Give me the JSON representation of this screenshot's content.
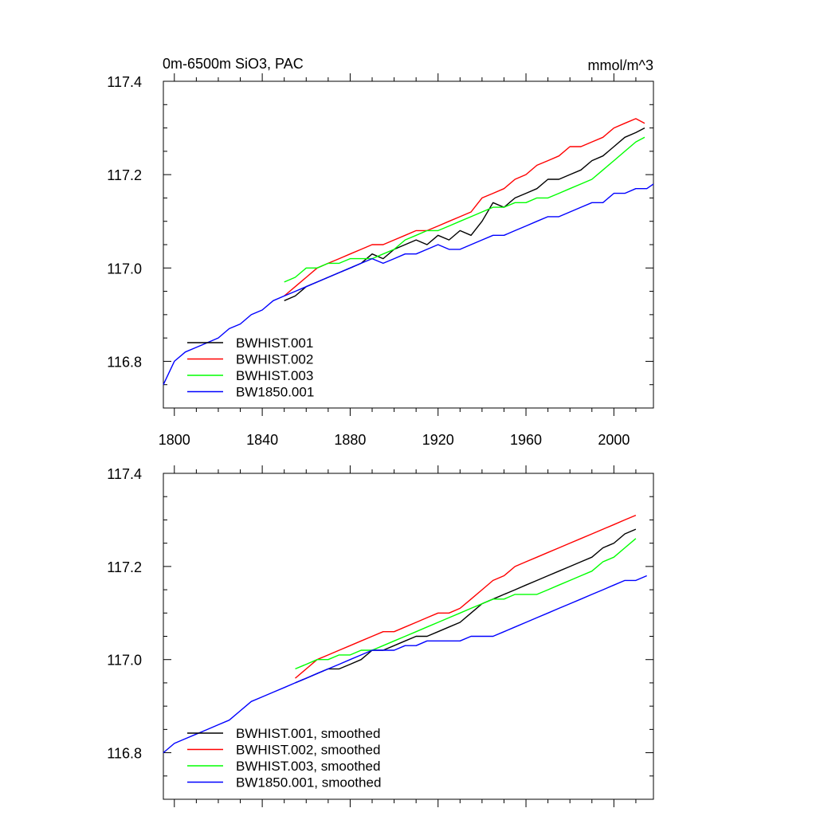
{
  "title_left": "0m-6500m SiO3, PAC",
  "title_right": "mmol/m^3",
  "chart_data": [
    {
      "type": "line",
      "xlim": [
        1795,
        2018
      ],
      "ylim": [
        116.7,
        117.4
      ],
      "x_major_ticks": [
        1800,
        1840,
        1880,
        1920,
        1960,
        2000
      ],
      "y_major_ticks": [
        116.8,
        117.0,
        117.2,
        117.4
      ],
      "x_tick_labels": [
        "1800",
        "1840",
        "1880",
        "1920",
        "1960",
        "2000"
      ],
      "y_tick_labels": [
        "116.8",
        "117.0",
        "117.2",
        "117.4"
      ],
      "legend_position": "bottom-left",
      "grid": false,
      "series": [
        {
          "name": "BWHIST.001",
          "color": "#000000",
          "x": [
            1850,
            1855,
            1860,
            1865,
            1870,
            1875,
            1880,
            1885,
            1890,
            1895,
            1900,
            1905,
            1910,
            1915,
            1920,
            1925,
            1930,
            1935,
            1940,
            1945,
            1950,
            1955,
            1960,
            1965,
            1970,
            1975,
            1980,
            1985,
            1990,
            1995,
            2000,
            2005,
            2010,
            2014
          ],
          "y": [
            116.93,
            116.94,
            116.96,
            116.97,
            116.98,
            116.99,
            117.0,
            117.01,
            117.03,
            117.02,
            117.04,
            117.05,
            117.06,
            117.05,
            117.07,
            117.06,
            117.08,
            117.07,
            117.1,
            117.14,
            117.13,
            117.15,
            117.16,
            117.17,
            117.19,
            117.19,
            117.2,
            117.21,
            117.23,
            117.24,
            117.26,
            117.28,
            117.29,
            117.3
          ]
        },
        {
          "name": "BWHIST.002",
          "color": "#ff0000",
          "x": [
            1850,
            1855,
            1860,
            1865,
            1870,
            1875,
            1880,
            1885,
            1890,
            1895,
            1900,
            1905,
            1910,
            1915,
            1920,
            1925,
            1930,
            1935,
            1940,
            1945,
            1950,
            1955,
            1960,
            1965,
            1970,
            1975,
            1980,
            1985,
            1990,
            1995,
            2000,
            2005,
            2010,
            2014
          ],
          "y": [
            116.94,
            116.96,
            116.98,
            117.0,
            117.01,
            117.02,
            117.03,
            117.04,
            117.05,
            117.05,
            117.06,
            117.07,
            117.08,
            117.08,
            117.09,
            117.1,
            117.11,
            117.12,
            117.15,
            117.16,
            117.17,
            117.19,
            117.2,
            117.22,
            117.23,
            117.24,
            117.26,
            117.26,
            117.27,
            117.28,
            117.3,
            117.31,
            117.32,
            117.31
          ]
        },
        {
          "name": "BWHIST.003",
          "color": "#00ff00",
          "x": [
            1850,
            1855,
            1860,
            1865,
            1870,
            1875,
            1880,
            1885,
            1890,
            1895,
            1900,
            1905,
            1910,
            1915,
            1920,
            1925,
            1930,
            1935,
            1940,
            1945,
            1950,
            1955,
            1960,
            1965,
            1970,
            1975,
            1980,
            1985,
            1990,
            1995,
            2000,
            2005,
            2010,
            2014
          ],
          "y": [
            116.97,
            116.98,
            117.0,
            117.0,
            117.01,
            117.01,
            117.02,
            117.02,
            117.02,
            117.03,
            117.04,
            117.06,
            117.07,
            117.08,
            117.08,
            117.09,
            117.1,
            117.11,
            117.12,
            117.13,
            117.13,
            117.14,
            117.14,
            117.15,
            117.15,
            117.16,
            117.17,
            117.18,
            117.19,
            117.21,
            117.23,
            117.25,
            117.27,
            117.28
          ]
        },
        {
          "name": "BW1850.001",
          "color": "#0000ff",
          "x": [
            1795,
            1800,
            1805,
            1810,
            1815,
            1820,
            1825,
            1830,
            1835,
            1840,
            1845,
            1850,
            1855,
            1860,
            1865,
            1870,
            1875,
            1880,
            1885,
            1890,
            1895,
            1900,
            1905,
            1910,
            1915,
            1920,
            1925,
            1930,
            1935,
            1940,
            1945,
            1950,
            1955,
            1960,
            1965,
            1970,
            1975,
            1980,
            1985,
            1990,
            1995,
            2000,
            2005,
            2010,
            2015,
            2018
          ],
          "y": [
            116.75,
            116.8,
            116.82,
            116.83,
            116.84,
            116.85,
            116.87,
            116.88,
            116.9,
            116.91,
            116.93,
            116.94,
            116.95,
            116.96,
            116.97,
            116.98,
            116.99,
            117.0,
            117.01,
            117.02,
            117.01,
            117.02,
            117.03,
            117.03,
            117.04,
            117.05,
            117.04,
            117.04,
            117.05,
            117.06,
            117.07,
            117.07,
            117.08,
            117.09,
            117.1,
            117.11,
            117.11,
            117.12,
            117.13,
            117.14,
            117.14,
            117.16,
            117.16,
            117.17,
            117.17,
            117.18
          ]
        }
      ]
    },
    {
      "type": "line",
      "xlim": [
        1795,
        2018
      ],
      "ylim": [
        116.7,
        117.4
      ],
      "y_major_ticks": [
        116.8,
        117.0,
        117.2,
        117.4
      ],
      "y_tick_labels": [
        "116.8",
        "117.0",
        "117.2",
        "117.4"
      ],
      "x_major_ticks": [
        1800,
        1840,
        1880,
        1920,
        1960,
        2000
      ],
      "legend_position": "bottom-left",
      "grid": false,
      "series": [
        {
          "name": "BWHIST.001, smoothed",
          "color": "#000000",
          "x": [
            1855,
            1860,
            1865,
            1870,
            1875,
            1880,
            1885,
            1890,
            1895,
            1900,
            1905,
            1910,
            1915,
            1920,
            1925,
            1930,
            1935,
            1940,
            1945,
            1950,
            1955,
            1960,
            1965,
            1970,
            1975,
            1980,
            1985,
            1990,
            1995,
            2000,
            2005,
            2010
          ],
          "y": [
            116.95,
            116.96,
            116.97,
            116.98,
            116.98,
            116.99,
            117.0,
            117.02,
            117.02,
            117.03,
            117.04,
            117.05,
            117.05,
            117.06,
            117.07,
            117.08,
            117.1,
            117.12,
            117.13,
            117.14,
            117.15,
            117.16,
            117.17,
            117.18,
            117.19,
            117.2,
            117.21,
            117.22,
            117.24,
            117.25,
            117.27,
            117.28
          ]
        },
        {
          "name": "BWHIST.002, smoothed",
          "color": "#ff0000",
          "x": [
            1855,
            1860,
            1865,
            1870,
            1875,
            1880,
            1885,
            1890,
            1895,
            1900,
            1905,
            1910,
            1915,
            1920,
            1925,
            1930,
            1935,
            1940,
            1945,
            1950,
            1955,
            1960,
            1965,
            1970,
            1975,
            1980,
            1985,
            1990,
            1995,
            2000,
            2005,
            2010
          ],
          "y": [
            116.96,
            116.98,
            117.0,
            117.01,
            117.02,
            117.03,
            117.04,
            117.05,
            117.06,
            117.06,
            117.07,
            117.08,
            117.09,
            117.1,
            117.1,
            117.11,
            117.13,
            117.15,
            117.17,
            117.18,
            117.2,
            117.21,
            117.22,
            117.23,
            117.24,
            117.25,
            117.26,
            117.27,
            117.28,
            117.29,
            117.3,
            117.31
          ]
        },
        {
          "name": "BWHIST.003, smoothed",
          "color": "#00ff00",
          "x": [
            1855,
            1860,
            1865,
            1870,
            1875,
            1880,
            1885,
            1890,
            1895,
            1900,
            1905,
            1910,
            1915,
            1920,
            1925,
            1930,
            1935,
            1940,
            1945,
            1950,
            1955,
            1960,
            1965,
            1970,
            1975,
            1980,
            1985,
            1990,
            1995,
            2000,
            2005,
            2010
          ],
          "y": [
            116.98,
            116.99,
            117.0,
            117.0,
            117.01,
            117.01,
            117.02,
            117.02,
            117.03,
            117.04,
            117.05,
            117.06,
            117.07,
            117.08,
            117.09,
            117.1,
            117.11,
            117.12,
            117.13,
            117.13,
            117.14,
            117.14,
            117.14,
            117.15,
            117.16,
            117.17,
            117.18,
            117.19,
            117.21,
            117.22,
            117.24,
            117.26
          ]
        },
        {
          "name": "BW1850.001, smoothed",
          "color": "#0000ff",
          "x": [
            1795,
            1800,
            1805,
            1810,
            1815,
            1820,
            1825,
            1830,
            1835,
            1840,
            1845,
            1850,
            1855,
            1860,
            1865,
            1870,
            1875,
            1880,
            1885,
            1890,
            1895,
            1900,
            1905,
            1910,
            1915,
            1920,
            1925,
            1930,
            1935,
            1940,
            1945,
            1950,
            1955,
            1960,
            1965,
            1970,
            1975,
            1980,
            1985,
            1990,
            1995,
            2000,
            2005,
            2010,
            2015
          ],
          "y": [
            116.8,
            116.82,
            116.83,
            116.84,
            116.85,
            116.86,
            116.87,
            116.89,
            116.91,
            116.92,
            116.93,
            116.94,
            116.95,
            116.96,
            116.97,
            116.98,
            116.99,
            117.0,
            117.01,
            117.02,
            117.02,
            117.02,
            117.03,
            117.03,
            117.04,
            117.04,
            117.04,
            117.04,
            117.05,
            117.05,
            117.05,
            117.06,
            117.07,
            117.08,
            117.09,
            117.1,
            117.11,
            117.12,
            117.13,
            117.14,
            117.15,
            117.16,
            117.17,
            117.17,
            117.18
          ]
        }
      ]
    }
  ]
}
